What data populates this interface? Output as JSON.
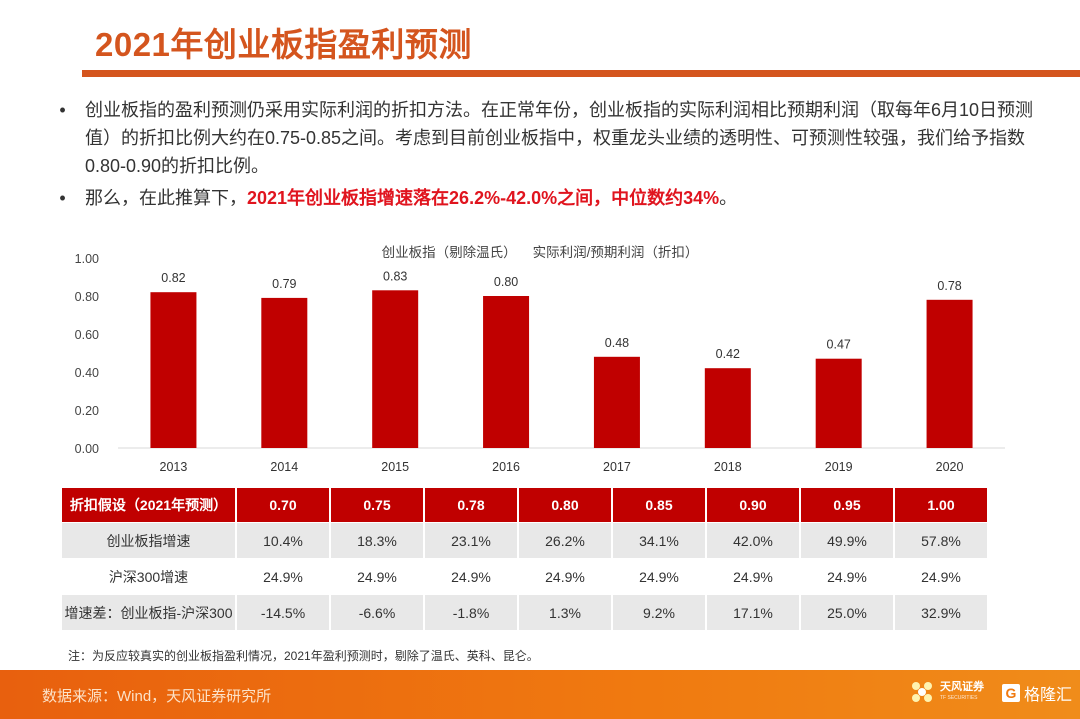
{
  "header": {
    "title": "2021年创业板指盈利预测"
  },
  "bullets": [
    {
      "text": "创业板指的盈利预测仍采用实际利润的折扣方法。在正常年份，创业板指的实际利润相比预期利润（取每年6月10日预测值）的折扣比例大约在0.75-0.85之间。考虑到目前创业板指中，权重龙头业绩的透明性、可预测性较强，我们给予指数0.80-0.90的折扣比例。"
    },
    {
      "prefix": "那么，在此推算下，",
      "highlight": "2021年创业板指增速落在26.2%-42.0%之间，中位数约34%",
      "suffix": "。"
    }
  ],
  "chart_data": {
    "type": "bar",
    "title_parts": [
      "创业板指（剔除温氏）",
      "实际利润/预期利润（折扣）"
    ],
    "categories": [
      "2013",
      "2014",
      "2015",
      "2016",
      "2017",
      "2018",
      "2019",
      "2020"
    ],
    "values": [
      0.82,
      0.79,
      0.83,
      0.8,
      0.48,
      0.42,
      0.47,
      0.78
    ],
    "data_labels": [
      "0.82",
      "0.79",
      "0.83",
      "0.80",
      "0.48",
      "0.42",
      "0.47",
      "0.78"
    ],
    "yticks": [
      "0.00",
      "0.20",
      "0.40",
      "0.60",
      "0.80",
      "1.00"
    ],
    "ylim": [
      0,
      1.0
    ],
    "xlabel": "",
    "ylabel": "",
    "grid": false,
    "bar_color": "#C00000"
  },
  "table": {
    "header": {
      "label": "折扣假设（2021年预测）",
      "values": [
        "0.70",
        "0.75",
        "0.78",
        "0.80",
        "0.85",
        "0.90",
        "0.95",
        "1.00"
      ]
    },
    "rows": [
      {
        "label": "创业板指增速",
        "values": [
          "10.4%",
          "18.3%",
          "23.1%",
          "26.2%",
          "34.1%",
          "42.0%",
          "49.9%",
          "57.8%"
        ]
      },
      {
        "label": "沪深300增速",
        "values": [
          "24.9%",
          "24.9%",
          "24.9%",
          "24.9%",
          "24.9%",
          "24.9%",
          "24.9%",
          "24.9%"
        ]
      },
      {
        "label": "增速差：创业板指-沪深300",
        "values": [
          "-14.5%",
          "-6.6%",
          "-1.8%",
          "1.3%",
          "9.2%",
          "17.1%",
          "25.0%",
          "32.9%"
        ]
      }
    ]
  },
  "note": "注：为反应较真实的创业板指盈利情况，2021年盈利预测时，剔除了温氏、英科、昆仑。",
  "footer": {
    "source": "数据来源：Wind，天风证券研究所",
    "logo_tf": "天风证券",
    "logo_tf_sub": "TF SECURITIES",
    "logo_glh": "格隆汇",
    "logo_glh_mark": "G"
  },
  "colors": {
    "title": "#D4551E",
    "highlight": "#E0141E",
    "bar": "#C00000",
    "footer": "#F07A10"
  }
}
